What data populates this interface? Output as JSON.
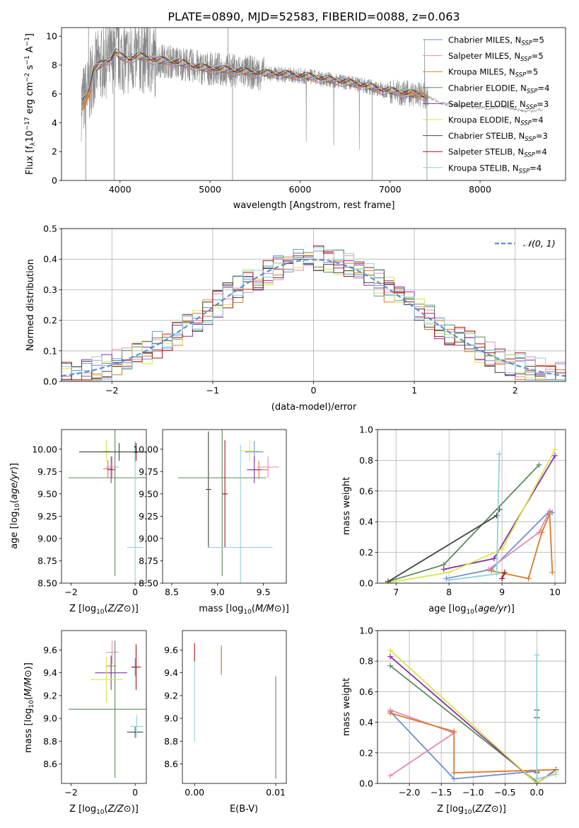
{
  "figure": {
    "title": "PLATE=0890, MJD=52583, FIBERID=0088, z=0.063"
  },
  "models": [
    {
      "name": "Chabrier MILES, N",
      "sub": "SSP",
      "n": "5",
      "color": "#6f8fd1"
    },
    {
      "name": "Salpeter MILES, N",
      "sub": "SSP",
      "n": "5",
      "color": "#e58ab8"
    },
    {
      "name": "Kroupa MILES, N",
      "sub": "SSP",
      "n": "5",
      "color": "#d87a2a"
    },
    {
      "name": "Chabrier ELODIE, N",
      "sub": "SSP",
      "n": "4",
      "color": "#5b8a5b"
    },
    {
      "name": "Salpeter ELODIE, N",
      "sub": "SSP",
      "n": "3",
      "color": "#8c2fa8"
    },
    {
      "name": "Kroupa ELODIE, N",
      "sub": "SSP",
      "n": "4",
      "color": "#d7e64a"
    },
    {
      "name": "Chabrier STELIB, N",
      "sub": "SSP",
      "n": "3",
      "color": "#444444"
    },
    {
      "name": "Salpeter STELIB, N",
      "sub": "SSP",
      "n": "4",
      "color": "#a31515"
    },
    {
      "name": "Kroupa STELIB, N",
      "sub": "SSP",
      "n": "4",
      "color": "#8fd3d8"
    }
  ],
  "chart_data": [
    {
      "id": "spectrum",
      "type": "line",
      "xlabel": "wavelength [Angstrom, rest frame]",
      "ylabel_parts": [
        "Flux [f",
        "λ",
        "10",
        "−17",
        " erg cm",
        "−2",
        " s",
        "−1",
        " A",
        "−1",
        "]"
      ],
      "xlim": [
        3350,
        8950
      ],
      "ylim": [
        0,
        10.6
      ],
      "xticks": [
        4000,
        5000,
        6000,
        7000,
        8000
      ],
      "yticks": [
        0,
        2,
        4,
        6,
        8,
        10
      ],
      "data_color": "#888888",
      "model_curve": {
        "x": [
          3570,
          3650,
          3700,
          3800,
          3900,
          3950,
          4000,
          4100,
          4200,
          4300,
          4400,
          4500,
          4700,
          4900,
          5100,
          5300,
          5500,
          5700,
          5900,
          6100,
          6300,
          6500,
          6700,
          6900,
          7100,
          7300,
          7420,
          7600,
          7900,
          8100,
          8300,
          8500,
          8700
        ],
        "y": [
          5.3,
          6.2,
          7.6,
          8.1,
          8.4,
          8.9,
          8.6,
          8.4,
          8.6,
          8.5,
          8.3,
          8.3,
          8.1,
          7.8,
          7.7,
          7.6,
          7.45,
          7.4,
          7.3,
          7.2,
          7.0,
          6.8,
          6.6,
          6.3,
          6.1,
          5.95,
          5.8,
          5.3,
          5.1,
          5.0,
          5.1,
          4.8,
          4.9
        ]
      },
      "legend_position": "upper right"
    },
    {
      "id": "residuals",
      "type": "step",
      "xlabel": "(data-model)/error",
      "ylabel": "Normed distribution",
      "xlim": [
        -2.5,
        2.5
      ],
      "ylim": [
        0,
        0.5
      ],
      "xticks": [
        -2,
        -1,
        0,
        1,
        2
      ],
      "yticks": [
        0.0,
        0.1,
        0.2,
        0.3,
        0.4,
        0.5
      ],
      "grid": true,
      "reference": {
        "label": "𝒩(0, 1)",
        "color": "#5b8fd6",
        "style": "dashed"
      },
      "legend_position": "upper right"
    },
    {
      "id": "age_vs_Z",
      "type": "errorbar",
      "xlabel": "Z [log10(Z/Z⊙)]",
      "ylabel": "age [log10(age/yr)]",
      "xlim": [
        -2.3,
        0.35
      ],
      "ylim": [
        8.5,
        10.22
      ],
      "xticks": [
        -2,
        0
      ],
      "yticks": [
        8.5,
        8.75,
        9.0,
        9.25,
        9.5,
        9.75,
        10.0
      ],
      "points": [
        {
          "model": 0,
          "x": 0.0,
          "y": 9.97,
          "xerr": 0.08,
          "yerr": 0.12
        },
        {
          "model": 1,
          "x": -0.72,
          "y": 9.8,
          "xerr": 0.2,
          "yerr": 0.12
        },
        {
          "model": 2,
          "x": -0.85,
          "y": 9.78,
          "xerr": 0.15,
          "yerr": 0.1
        },
        {
          "model": 3,
          "x": -0.63,
          "y": 9.68,
          "xerr": 1.45,
          "yerr": 1.1
        },
        {
          "model": 4,
          "x": -0.75,
          "y": 9.77,
          "xerr": 0.12,
          "yerr": 0.15
        },
        {
          "model": 5,
          "x": -0.9,
          "y": 9.98,
          "xerr": 0.1,
          "yerr": 0.12
        },
        {
          "model": 6,
          "x": -0.5,
          "y": 9.97,
          "xerr": 1.25,
          "yerr": 0.1
        },
        {
          "model": 7,
          "x": 0.03,
          "y": 9.97,
          "xerr": 0.06,
          "yerr": 0.1
        },
        {
          "model": 8,
          "x": 0.0,
          "y": 8.9,
          "xerr": 0.25,
          "yerr": 1.15
        }
      ]
    },
    {
      "id": "age_vs_mass",
      "type": "errorbar",
      "xlabel": "mass [log10(M/M⊙)]",
      "ylabel": "",
      "xlim": [
        8.4,
        9.75
      ],
      "ylim": [
        8.5,
        10.22
      ],
      "xticks": [
        8.5,
        9.0,
        9.5
      ],
      "yticks": [
        8.5,
        8.75,
        9.0,
        9.25,
        9.5,
        9.75,
        10.0
      ],
      "points": [
        {
          "model": 0,
          "x": 9.4,
          "y": 9.97,
          "xerr": 0.1,
          "yerr": 0.12
        },
        {
          "model": 1,
          "x": 9.55,
          "y": 9.8,
          "xerr": 0.12,
          "yerr": 0.12
        },
        {
          "model": 2,
          "x": 9.45,
          "y": 9.77,
          "xerr": 0.1,
          "yerr": 0.1
        },
        {
          "model": 3,
          "x": 9.05,
          "y": 9.68,
          "xerr": 0.48,
          "yerr": 1.1
        },
        {
          "model": 4,
          "x": 9.4,
          "y": 9.77,
          "xerr": 0.08,
          "yerr": 0.15
        },
        {
          "model": 5,
          "x": 9.35,
          "y": 9.98,
          "xerr": 0.1,
          "yerr": 0.12
        },
        {
          "model": 6,
          "x": 8.9,
          "y": 9.55,
          "xerr": 0.03,
          "yerr": 0.65
        },
        {
          "model": 7,
          "x": 9.08,
          "y": 9.5,
          "xerr": 0.03,
          "yerr": 0.6
        },
        {
          "model": 8,
          "x": 9.25,
          "y": 8.9,
          "xerr": 0.35,
          "yerr": 1.15
        }
      ]
    },
    {
      "id": "weight_vs_age",
      "type": "line",
      "xlabel": "age [log10(age/yr)]",
      "ylabel": "mass weight",
      "xlim": [
        6.65,
        10.2
      ],
      "ylim": [
        0,
        1.0
      ],
      "xticks": [
        7,
        8,
        9,
        10
      ],
      "yticks": [
        0.0,
        0.2,
        0.4,
        0.6,
        0.8,
        1.0
      ],
      "grid": true,
      "series": [
        {
          "model": 0,
          "x": [
            7.95,
            8.8,
            9.9,
            9.95
          ],
          "y": [
            0.03,
            0.09,
            0.47,
            0.46
          ]
        },
        {
          "model": 1,
          "x": [
            8.75,
            9.7,
            9.9
          ],
          "y": [
            0.09,
            0.33,
            0.47
          ]
        },
        {
          "model": 2,
          "x": [
            8.8,
            9.5,
            9.75,
            9.9,
            9.95
          ],
          "y": [
            0.08,
            0.03,
            0.33,
            0.45,
            0.07
          ]
        },
        {
          "model": 3,
          "x": [
            6.85,
            7.9,
            9.7
          ],
          "y": [
            0.01,
            0.12,
            0.77
          ]
        },
        {
          "model": 4,
          "x": [
            7.9,
            8.85,
            10.0
          ],
          "y": [
            0.09,
            0.16,
            0.83
          ]
        },
        {
          "model": 5,
          "x": [
            6.8,
            8.0,
            9.0,
            10.0
          ],
          "y": [
            0.0,
            0.07,
            0.22,
            0.87
          ]
        },
        {
          "model": 6,
          "x": [
            6.85,
            8.9,
            8.95
          ],
          "y": [
            0.01,
            0.44,
            0.48
          ]
        },
        {
          "model": 7,
          "x": [
            9.0,
            9.05
          ],
          "y": [
            0.03,
            0.07
          ]
        },
        {
          "model": 8,
          "x": [
            8.0,
            8.9,
            8.95,
            8.95
          ],
          "y": [
            0.02,
            0.06,
            0.84,
            0.84
          ]
        }
      ]
    },
    {
      "id": "mass_vs_Z",
      "type": "errorbar",
      "xlabel": "Z [log10(Z/Z⊙)]",
      "ylabel": "mass [log10(M/M⊙)]",
      "xlim": [
        -2.3,
        0.35
      ],
      "ylim": [
        8.43,
        9.77
      ],
      "xticks": [
        -2,
        0
      ],
      "yticks": [
        8.6,
        8.8,
        9.0,
        9.2,
        9.4,
        9.6
      ],
      "points": [
        {
          "model": 0,
          "x": 0.0,
          "y": 9.45,
          "xerr": 0.1,
          "yerr": 0.08
        },
        {
          "model": 1,
          "x": -0.72,
          "y": 9.58,
          "xerr": 0.2,
          "yerr": 0.1
        },
        {
          "model": 2,
          "x": -0.75,
          "y": 9.46,
          "xerr": 0.15,
          "yerr": 0.08
        },
        {
          "model": 3,
          "x": -0.63,
          "y": 9.08,
          "xerr": 1.45,
          "yerr": 0.6
        },
        {
          "model": 4,
          "x": -0.75,
          "y": 9.4,
          "xerr": 0.5,
          "yerr": 0.15
        },
        {
          "model": 5,
          "x": -0.9,
          "y": 9.34,
          "xerr": 0.5,
          "yerr": 0.2
        },
        {
          "model": 6,
          "x": 0.0,
          "y": 8.88,
          "xerr": 0.25,
          "yerr": 0.05
        },
        {
          "model": 7,
          "x": 0.03,
          "y": 9.45,
          "xerr": 0.15,
          "yerr": 0.2
        },
        {
          "model": 8,
          "x": 0.05,
          "y": 8.93,
          "xerr": 0.2,
          "yerr": 0.1
        }
      ]
    },
    {
      "id": "mass_vs_EBV",
      "type": "errorbar",
      "xlabel": "E(B-V)",
      "ylabel": "",
      "xlim": [
        -0.0015,
        0.0113
      ],
      "ylim": [
        8.43,
        9.77
      ],
      "xticks": [
        0.0,
        0.01
      ],
      "yticks": [
        8.6,
        8.8,
        9.0,
        9.2,
        9.4,
        9.6
      ],
      "points": [
        {
          "model": 0,
          "x": 0.0033,
          "y": 9.52,
          "xerr": 0.0,
          "yerr": 0.12
        },
        {
          "model": 2,
          "x": 0.0033,
          "y": 9.5,
          "xerr": 0.0,
          "yerr": 0.12
        },
        {
          "model": 3,
          "x": 0.01,
          "y": 8.92,
          "xerr": 0.0,
          "yerr": 0.45
        },
        {
          "model": 7,
          "x": 0.0,
          "y": 9.58,
          "xerr": 0.0,
          "yerr": 0.08
        },
        {
          "model": 8,
          "x": 0.0,
          "y": 9.15,
          "xerr": 0.0,
          "yerr": 0.35
        }
      ]
    },
    {
      "id": "weight_vs_Z",
      "type": "line",
      "xlabel": "Z [log10(Z/Z⊙)]",
      "ylabel": "mass weight",
      "xlim": [
        -2.5,
        0.45
      ],
      "ylim": [
        0,
        1.0
      ],
      "xticks": [
        -2.0,
        -1.5,
        -1.0,
        -0.5,
        0.0
      ],
      "yticks": [
        0.0,
        0.2,
        0.4,
        0.6,
        0.8,
        1.0
      ],
      "grid": true,
      "series": [
        {
          "model": 0,
          "x": [
            -2.3,
            -1.3,
            0.0
          ],
          "y": [
            0.47,
            0.03,
            0.08
          ]
        },
        {
          "model": 1,
          "x": [
            -2.3,
            -1.3,
            -2.3
          ],
          "y": [
            0.05,
            0.33,
            0.48
          ]
        },
        {
          "model": 2,
          "x": [
            -2.3,
            -1.3,
            -1.3,
            0.3
          ],
          "y": [
            0.46,
            0.34,
            0.07,
            0.09
          ]
        },
        {
          "model": 3,
          "x": [
            -2.3,
            0.0
          ],
          "y": [
            0.77,
            0.01
          ]
        },
        {
          "model": 4,
          "x": [
            -2.3,
            0.0,
            0.3
          ],
          "y": [
            0.83,
            0.0,
            0.09
          ]
        },
        {
          "model": 5,
          "x": [
            -2.3,
            0.0,
            0.3
          ],
          "y": [
            0.87,
            0.0,
            0.08
          ]
        },
        {
          "model": 6,
          "x": [
            0.0,
            0.0
          ],
          "y": [
            0.43,
            0.48
          ]
        },
        {
          "model": 7,
          "x": [
            0.0,
            0.0
          ],
          "y": [
            0.07,
            0.03
          ]
        },
        {
          "model": 8,
          "x": [
            0.0,
            0.0,
            0.3
          ],
          "y": [
            0.84,
            0.03,
            0.06
          ]
        }
      ]
    }
  ]
}
